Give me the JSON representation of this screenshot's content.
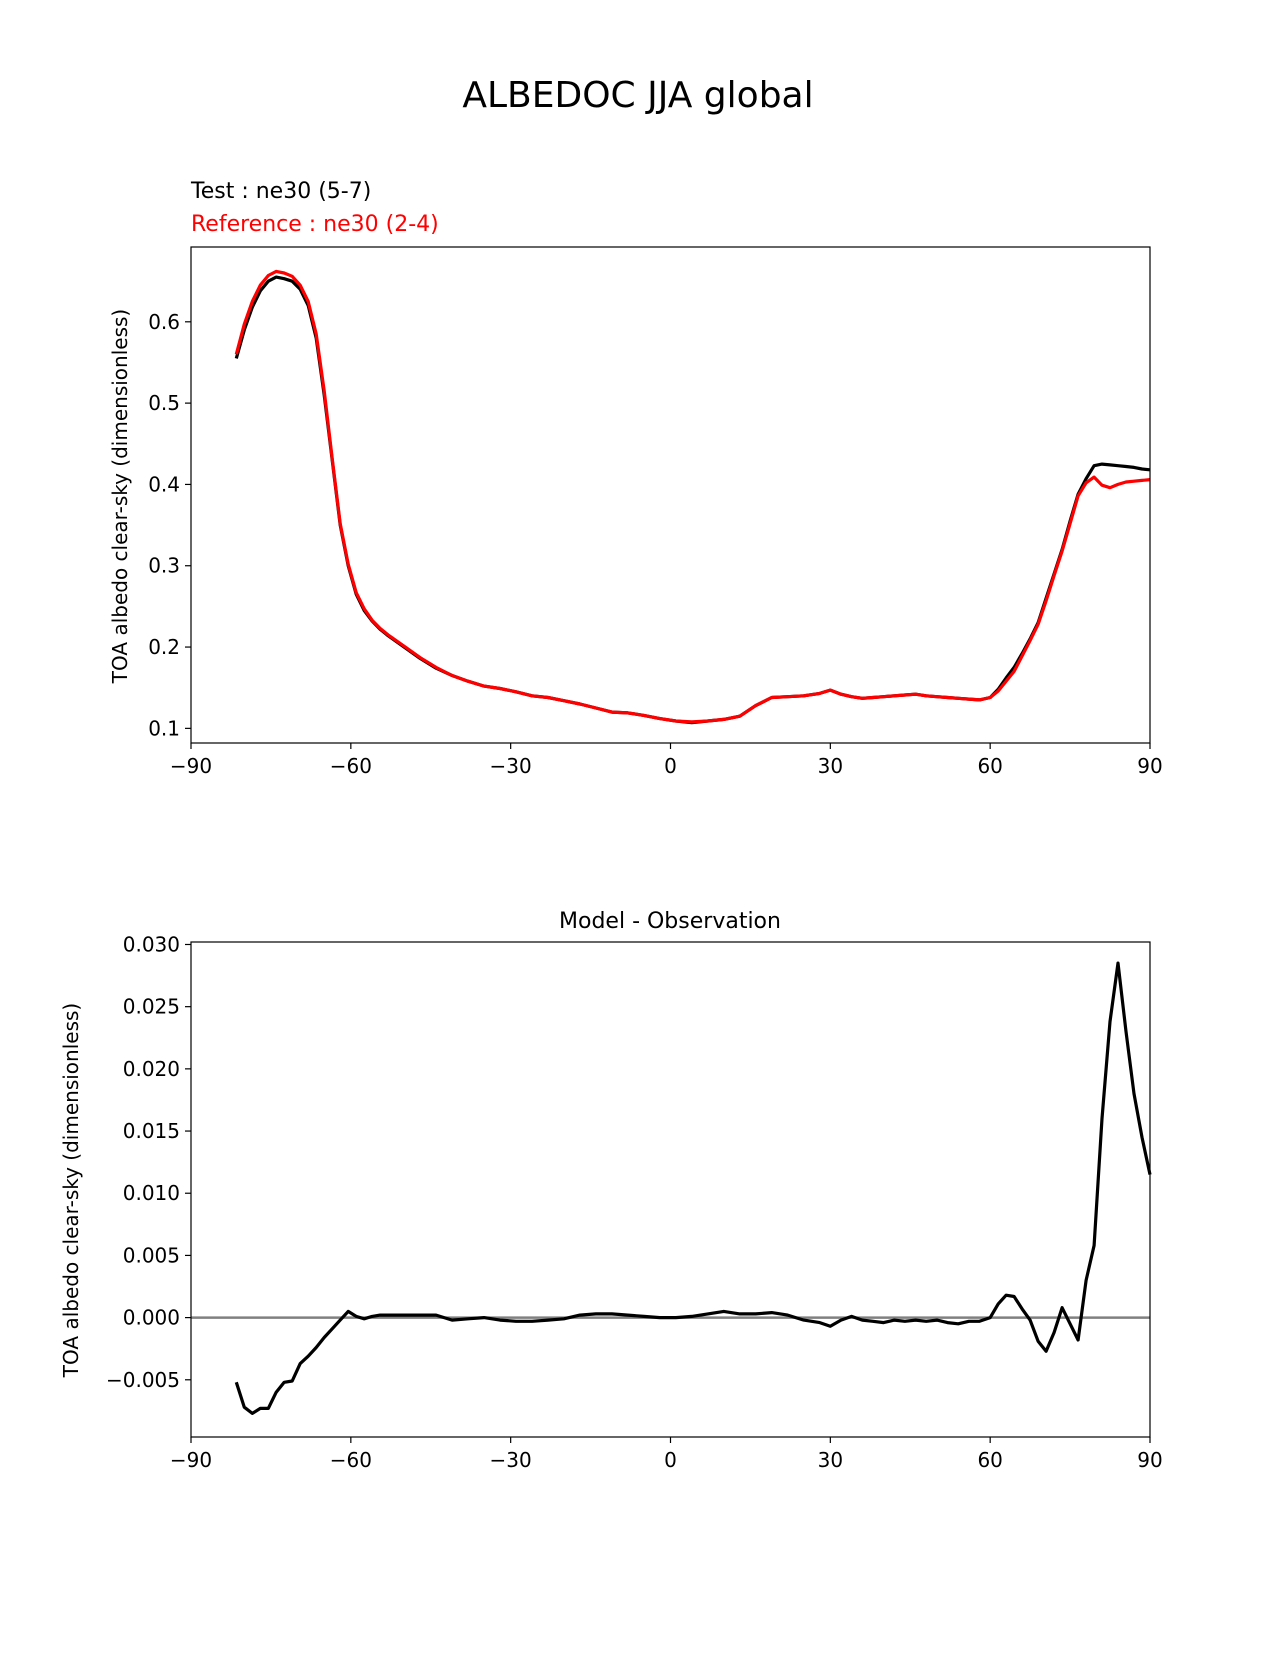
{
  "figure_title": "ALBEDOC JJA global",
  "chart_data": [
    {
      "type": "line",
      "title": "",
      "legend_labels": [
        "Test : ne30 (5-7)",
        "Reference : ne30 (2-4)"
      ],
      "xlabel": "",
      "ylabel": "TOA albedo clear-sky (dimensionless)",
      "xlim": [
        -90,
        90
      ],
      "ylim": [
        0.082,
        0.692
      ],
      "xticks": [
        -90,
        -60,
        -30,
        0,
        30,
        60,
        90
      ],
      "xtick_labels": [
        "−90",
        "−60",
        "−30",
        "0",
        "30",
        "60",
        "90"
      ],
      "yticks": [
        0.1,
        0.2,
        0.3,
        0.4,
        0.5,
        0.6
      ],
      "ytick_labels": [
        "0.1",
        "0.2",
        "0.3",
        "0.4",
        "0.5",
        "0.6"
      ],
      "grid": false,
      "series": [
        {
          "name": "Test : ne30 (5-7)",
          "color": "#000000",
          "x": [
            -81.5,
            -80,
            -78.5,
            -77,
            -75.5,
            -74,
            -72.5,
            -71,
            -69.5,
            -68,
            -66.5,
            -65,
            -63.5,
            -62,
            -60.5,
            -59,
            -57.5,
            -56,
            -54.5,
            -53,
            -50,
            -47,
            -44,
            -41,
            -38,
            -35,
            -32,
            -29,
            -26,
            -23,
            -20,
            -17,
            -14,
            -11,
            -8,
            -5,
            -2,
            1,
            4,
            7,
            10,
            13,
            16,
            19,
            22,
            25,
            28,
            30,
            32,
            34,
            36,
            38,
            40,
            42,
            44,
            46,
            48,
            50,
            52,
            54,
            56,
            58,
            60,
            61.5,
            63,
            64.5,
            66,
            67.5,
            69,
            70.5,
            72,
            73.5,
            75,
            76.5,
            78,
            79.5,
            81,
            82.5,
            84,
            85.5,
            87,
            88.5,
            90
          ],
          "y": [
            0.555,
            0.59,
            0.618,
            0.638,
            0.65,
            0.655,
            0.653,
            0.65,
            0.64,
            0.62,
            0.58,
            0.51,
            0.43,
            0.35,
            0.3,
            0.265,
            0.245,
            0.232,
            0.222,
            0.214,
            0.2,
            0.186,
            0.174,
            0.165,
            0.158,
            0.152,
            0.149,
            0.145,
            0.14,
            0.138,
            0.134,
            0.13,
            0.125,
            0.12,
            0.119,
            0.116,
            0.112,
            0.109,
            0.107,
            0.109,
            0.111,
            0.115,
            0.128,
            0.138,
            0.139,
            0.14,
            0.143,
            0.147,
            0.142,
            0.139,
            0.137,
            0.138,
            0.139,
            0.14,
            0.141,
            0.142,
            0.14,
            0.139,
            0.138,
            0.137,
            0.136,
            0.135,
            0.138,
            0.148,
            0.162,
            0.175,
            0.192,
            0.21,
            0.23,
            0.26,
            0.29,
            0.32,
            0.355,
            0.388,
            0.407,
            0.423,
            0.425,
            0.424,
            0.423,
            0.422,
            0.421,
            0.419,
            0.418
          ]
        },
        {
          "name": "Reference : ne30 (2-4)",
          "color": "#ff0000",
          "x": [
            -81.5,
            -80,
            -78.5,
            -77,
            -75.5,
            -74,
            -72.5,
            -71,
            -69.5,
            -68,
            -66.5,
            -65,
            -63.5,
            -62,
            -60.5,
            -59,
            -57.5,
            -56,
            -54.5,
            -53,
            -50,
            -47,
            -44,
            -41,
            -38,
            -35,
            -32,
            -29,
            -26,
            -23,
            -20,
            -17,
            -14,
            -11,
            -8,
            -5,
            -2,
            1,
            4,
            7,
            10,
            13,
            16,
            19,
            22,
            25,
            28,
            30,
            32,
            34,
            36,
            38,
            40,
            42,
            44,
            46,
            48,
            50,
            52,
            54,
            56,
            58,
            60,
            61.5,
            63,
            64.5,
            66,
            67.5,
            69,
            70.5,
            72,
            73.5,
            75,
            76.5,
            78,
            79.5,
            81,
            82.5,
            84,
            85.5,
            87,
            88.5,
            90
          ],
          "y": [
            0.56,
            0.597,
            0.625,
            0.645,
            0.657,
            0.662,
            0.66,
            0.656,
            0.645,
            0.625,
            0.585,
            0.515,
            0.432,
            0.352,
            0.302,
            0.267,
            0.247,
            0.233,
            0.223,
            0.215,
            0.201,
            0.187,
            0.175,
            0.165,
            0.158,
            0.152,
            0.149,
            0.145,
            0.14,
            0.138,
            0.134,
            0.13,
            0.125,
            0.12,
            0.119,
            0.116,
            0.112,
            0.109,
            0.108,
            0.109,
            0.111,
            0.115,
            0.128,
            0.138,
            0.139,
            0.14,
            0.143,
            0.147,
            0.142,
            0.139,
            0.137,
            0.138,
            0.139,
            0.14,
            0.141,
            0.142,
            0.14,
            0.139,
            0.138,
            0.137,
            0.136,
            0.135,
            0.138,
            0.146,
            0.158,
            0.17,
            0.189,
            0.208,
            0.228,
            0.257,
            0.288,
            0.318,
            0.352,
            0.386,
            0.402,
            0.409,
            0.399,
            0.396,
            0.4,
            0.403,
            0.404,
            0.405,
            0.406
          ]
        }
      ]
    },
    {
      "type": "line",
      "title": "Model - Observation",
      "xlabel": "",
      "ylabel": "TOA albedo clear-sky (dimensionless)",
      "xlim": [
        -90,
        90
      ],
      "ylim": [
        -0.0096,
        0.0302
      ],
      "xticks": [
        -90,
        -60,
        -30,
        0,
        30,
        60,
        90
      ],
      "xtick_labels": [
        "−90",
        "−60",
        "−30",
        "0",
        "30",
        "60",
        "90"
      ],
      "yticks": [
        -0.005,
        0.0,
        0.005,
        0.01,
        0.015,
        0.02,
        0.025,
        0.03
      ],
      "ytick_labels": [
        "−0.005",
        "0.000",
        "0.005",
        "0.010",
        "0.015",
        "0.020",
        "0.025",
        "0.030"
      ],
      "grid": false,
      "zero_line_color": "#808080",
      "series": [
        {
          "color": "#000000",
          "x": [
            -81.5,
            -80,
            -78.5,
            -77,
            -75.5,
            -74,
            -72.5,
            -71,
            -69.5,
            -68,
            -66.5,
            -65,
            -63.5,
            -62,
            -60.5,
            -59,
            -57.5,
            -56,
            -54.5,
            -53,
            -50,
            -47,
            -44,
            -41,
            -38,
            -35,
            -32,
            -29,
            -26,
            -23,
            -20,
            -17,
            -14,
            -11,
            -8,
            -5,
            -2,
            1,
            4,
            7,
            10,
            13,
            16,
            19,
            22,
            25,
            28,
            30,
            32,
            34,
            36,
            38,
            40,
            42,
            44,
            46,
            48,
            50,
            52,
            54,
            56,
            58,
            60,
            61.5,
            63,
            64.5,
            66,
            67.5,
            69,
            70.5,
            72,
            73.5,
            75,
            76.5,
            78,
            79.5,
            81,
            82.5,
            84,
            85.5,
            87,
            88.5,
            90
          ],
          "y": [
            -0.0052,
            -0.0072,
            -0.0077,
            -0.0073,
            -0.0073,
            -0.006,
            -0.0052,
            -0.0051,
            -0.0037,
            -0.0031,
            -0.0024,
            -0.0016,
            -0.0009,
            -0.0002,
            0.0005,
            0.0001,
            -0.0001,
            0.0001,
            0.0002,
            0.0002,
            0.0002,
            0.0002,
            0.0002,
            -0.0002,
            -0.0001,
            0.0,
            -0.0002,
            -0.0003,
            -0.0003,
            -0.0002,
            -0.0001,
            0.0002,
            0.0003,
            0.0003,
            0.0002,
            0.0001,
            0.0,
            0.0,
            0.0001,
            0.0003,
            0.0005,
            0.0003,
            0.0003,
            0.0004,
            0.0002,
            -0.0002,
            -0.0004,
            -0.0007,
            -0.0002,
            0.0001,
            -0.0002,
            -0.0003,
            -0.0004,
            -0.0002,
            -0.0003,
            -0.0002,
            -0.0003,
            -0.0002,
            -0.0004,
            -0.0005,
            -0.0003,
            -0.0003,
            0.0,
            0.0011,
            0.0018,
            0.0017,
            0.0007,
            -0.0002,
            -0.0019,
            -0.0027,
            -0.0012,
            0.0008,
            -0.0005,
            -0.0018,
            0.003,
            0.0058,
            0.016,
            0.0238,
            0.0285,
            0.023,
            0.018,
            0.0145,
            0.0115
          ]
        }
      ]
    }
  ]
}
